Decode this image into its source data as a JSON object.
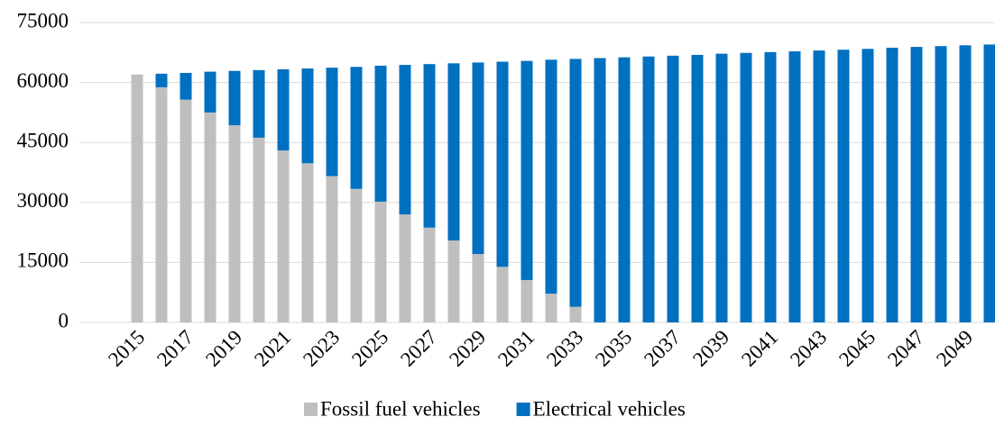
{
  "chart_data": {
    "type": "stacked_bar",
    "categories": [
      "2015",
      null,
      "2017",
      null,
      "2019",
      null,
      "2021",
      null,
      "2023",
      null,
      "2025",
      null,
      "2027",
      null,
      "2029",
      null,
      "2031",
      null,
      "2033",
      null,
      "2035",
      null,
      "2037",
      null,
      "2039",
      null,
      "2041",
      null,
      "2043",
      null,
      "2045",
      null,
      "2047",
      null,
      "2049",
      null
    ],
    "series": [
      {
        "name": "Fossil fuel vehicles",
        "color": "#bfbfbf",
        "values": [
          62000,
          58800,
          55700,
          52500,
          49300,
          46200,
          43000,
          39800,
          36600,
          33400,
          30200,
          27000,
          23700,
          20500,
          17100,
          13900,
          10600,
          7200,
          3900,
          0,
          0,
          0,
          0,
          0,
          0,
          0,
          0,
          0,
          0,
          0,
          0,
          0,
          0,
          0,
          0,
          0
        ]
      },
      {
        "name": "Electrical vehicles",
        "color": "#0070c0",
        "values": [
          0,
          3400,
          6700,
          10200,
          13600,
          16900,
          20300,
          23700,
          27100,
          30500,
          34000,
          37400,
          40900,
          44300,
          47900,
          51300,
          54800,
          58500,
          62000,
          66100,
          66300,
          66500,
          66700,
          66900,
          67200,
          67400,
          67600,
          67800,
          68000,
          68200,
          68400,
          68700,
          68900,
          69100,
          69300,
          69500
        ]
      }
    ],
    "ylim": [
      0,
      75000
    ],
    "yticks": [
      0,
      15000,
      30000,
      45000,
      60000,
      75000
    ],
    "grid": true,
    "legend": "bottom"
  }
}
